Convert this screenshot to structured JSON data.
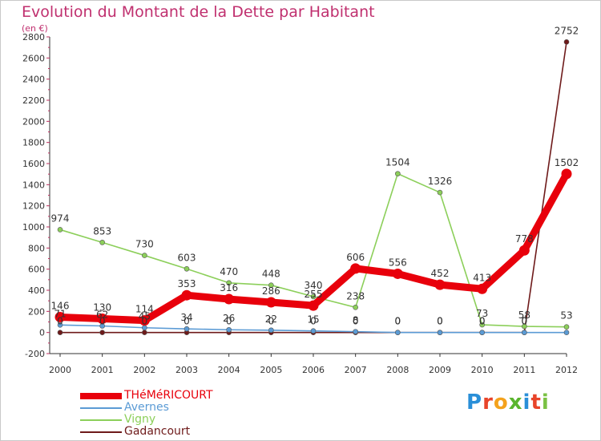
{
  "header": {
    "title": "Evolution du Montant de la Dette par Habitant",
    "subtitle": "(en €)"
  },
  "brand": {
    "letters": [
      "P",
      "r",
      "o",
      "x",
      "i",
      "t",
      "i"
    ],
    "colors": [
      "#2a8fd8",
      "#e8442a",
      "#f4a21c",
      "#5ab52e",
      "#2a8fd8",
      "#e8442a",
      "#7ac143"
    ]
  },
  "chart_data": {
    "type": "line",
    "x": [
      "2000",
      "2001",
      "2002",
      "2003",
      "2004",
      "2005",
      "2006",
      "2007",
      "2008",
      "2009",
      "2010",
      "2011",
      "2012"
    ],
    "ylim": [
      -200,
      2800
    ],
    "yticks": [
      -200,
      0,
      200,
      400,
      600,
      800,
      1000,
      1200,
      1400,
      1600,
      1800,
      2000,
      2200,
      2400,
      2600,
      2800
    ],
    "grid": false,
    "legend_position": "bottom-left",
    "series": [
      {
        "name": "THéMéRICOURT",
        "color": "#e8000b",
        "values": [
          146,
          130,
          114,
          353,
          316,
          286,
          255,
          606,
          556,
          452,
          413,
          778,
          1502
        ],
        "labels": [
          "146",
          "130",
          "114",
          "353",
          "316",
          "286",
          "255",
          "606",
          "556",
          "452",
          "413",
          "778",
          "1502"
        ]
      },
      {
        "name": "Avernes",
        "color": "#5b9bd5",
        "values": [
          71,
          62,
          45,
          34,
          26,
          22,
          15,
          8,
          0,
          0,
          0,
          0,
          0
        ],
        "labels": [
          "71",
          "62",
          "45",
          "34",
          "26",
          "22",
          "15",
          "8",
          "0",
          "0",
          "0",
          "0",
          ""
        ]
      },
      {
        "name": "Vigny",
        "color": "#8ccf5a",
        "values": [
          974,
          853,
          730,
          603,
          470,
          448,
          340,
          238,
          1504,
          1326,
          73,
          58,
          53
        ],
        "labels": [
          "974",
          "853",
          "730",
          "603",
          "470",
          "448",
          "340",
          "238",
          "1504",
          "1326",
          "73",
          "58",
          "53"
        ]
      },
      {
        "name": "Gadancourt",
        "color": "#6e1a1a",
        "values": [
          0,
          0,
          0,
          0,
          0,
          0,
          0,
          0,
          0,
          0,
          0,
          0,
          2752
        ],
        "labels": [
          "0",
          "0",
          "0",
          "0",
          "0",
          "0",
          "0",
          "0",
          "0",
          "0",
          "0",
          "0",
          "2752"
        ]
      }
    ]
  }
}
